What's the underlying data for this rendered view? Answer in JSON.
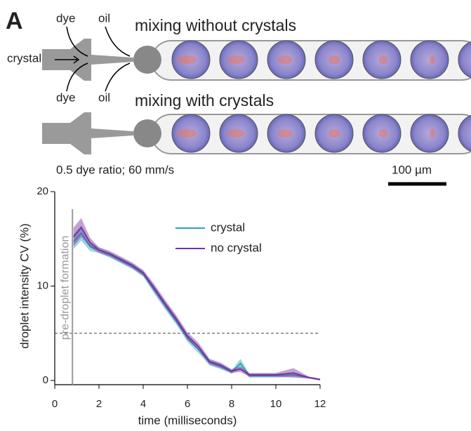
{
  "panel_label": "A",
  "image_labels": {
    "dye_top": "dye",
    "oil_top": "oil",
    "crystal": "crystal",
    "dye_bottom": "dye",
    "oil_bottom": "oil",
    "row1": "mixing without crystals",
    "row2": "mixing with crystals",
    "conditions": "0.5 dye ratio; 60 mm/s",
    "scale_bar": "100 µm"
  },
  "chart_data": {
    "type": "line",
    "x_label": "time (milliseconds)",
    "y_label": "droplet intensity CV (%)",
    "x": [
      0.85,
      1.2,
      1.6,
      2,
      2.5,
      3,
      3.5,
      4,
      4.5,
      5,
      5.5,
      6,
      6.5,
      7,
      7.5,
      8,
      8.4,
      8.8,
      9.5,
      10,
      10.8,
      11.5,
      12
    ],
    "series": [
      {
        "name": "crystal",
        "color": "#2aa5b5",
        "values": [
          14.7,
          15.6,
          14.2,
          13.8,
          13.3,
          12.7,
          12.1,
          11.3,
          9.6,
          7.9,
          6.3,
          4.5,
          3.3,
          1.9,
          1.5,
          0.9,
          1.8,
          0.5,
          0.5,
          0.5,
          0.6,
          0.3,
          0.1
        ],
        "errors": [
          0.8,
          0.8,
          0.5,
          0.3,
          0.3,
          0.3,
          0.3,
          0.3,
          0.4,
          0.4,
          0.4,
          0.4,
          0.4,
          0.3,
          0.3,
          0.2,
          0.5,
          0.2,
          0.2,
          0.2,
          0.2,
          0.1,
          0.1
        ]
      },
      {
        "name": "no crystal",
        "color": "#7b2f9e",
        "values": [
          15.2,
          16.2,
          14.6,
          13.8,
          13.4,
          12.8,
          12.2,
          11.4,
          9.8,
          8.1,
          6.5,
          4.7,
          3.6,
          2.0,
          1.6,
          1.0,
          1.2,
          0.6,
          0.6,
          0.6,
          0.8,
          0.3,
          0.1
        ],
        "errors": [
          1.0,
          1.0,
          0.5,
          0.3,
          0.3,
          0.3,
          0.3,
          0.3,
          0.4,
          0.4,
          0.4,
          0.4,
          0.4,
          0.3,
          0.3,
          0.2,
          0.3,
          0.2,
          0.2,
          0.2,
          0.5,
          0.1,
          0.1
        ]
      }
    ],
    "xlim": [
      0,
      12
    ],
    "xticks": [
      0,
      2,
      4,
      6,
      8,
      10,
      12
    ],
    "ylim": [
      0,
      20
    ],
    "yticks": [
      0,
      10,
      20
    ],
    "hline": 5,
    "vline": {
      "x": 0.8,
      "label": "pre-droplet formation"
    },
    "legend": "upper center"
  }
}
